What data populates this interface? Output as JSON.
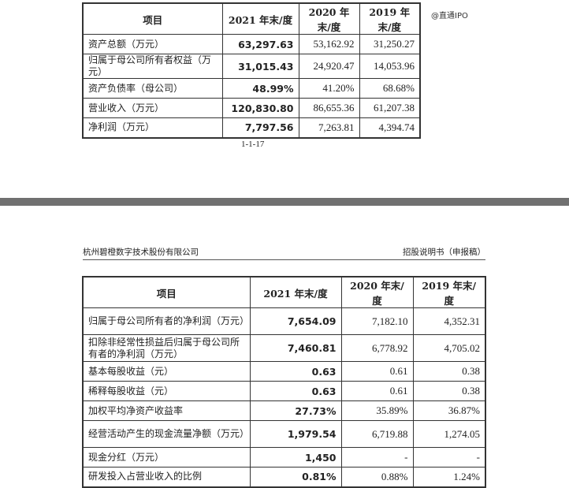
{
  "watermark": "@直通IPO",
  "page1": {
    "headers": [
      "项目",
      "2021 年末/度",
      "2020 年末/度",
      "2019 年末/度"
    ],
    "rows": [
      [
        "资产总额（万元）",
        "63,297.63",
        "53,162.92",
        "31,250.27"
      ],
      [
        "归属于母公司所有者权益（万元）",
        "31,015.43",
        "24,920.47",
        "14,053.96"
      ],
      [
        "资产负债率（母公司）",
        "48.99%",
        "41.20%",
        "68.68%"
      ],
      [
        "营业收入（万元）",
        "120,830.80",
        "86,655.36",
        "61,207.38"
      ],
      [
        "净利润（万元）",
        "7,797.56",
        "7,263.81",
        "4,394.74"
      ]
    ],
    "page_number": "1-1-17"
  },
  "page2": {
    "company": "杭州碧橙数字技术股份有限公司",
    "doc_title": "招股说明书（申报稿）",
    "headers": [
      "项目",
      "2021 年末/度",
      "2020 年末/度",
      "2019 年末/度"
    ],
    "rows": [
      [
        "归属于母公司所有者的净利润（万元）",
        "7,654.09",
        "7,182.10",
        "4,352.31"
      ],
      [
        "扣除非经常性损益后归属于母公司所有者的净利润（万元）",
        "7,460.81",
        "6,778.92",
        "4,705.02"
      ],
      [
        "基本每股收益（元）",
        "0.63",
        "0.61",
        "0.38"
      ],
      [
        "稀释每股收益（元）",
        "0.63",
        "0.61",
        "0.38"
      ],
      [
        "加权平均净资产收益率",
        "27.73%",
        "35.89%",
        "36.87%"
      ],
      [
        "经营活动产生的现金流量净额（万元）",
        "1,979.54",
        "6,719.88",
        "1,274.05"
      ],
      [
        "现金分红（万元）",
        "1,450",
        "-",
        "-"
      ],
      [
        "研发投入占营业收入的比例",
        "0.81%",
        "0.88%",
        "1.24%"
      ]
    ]
  }
}
